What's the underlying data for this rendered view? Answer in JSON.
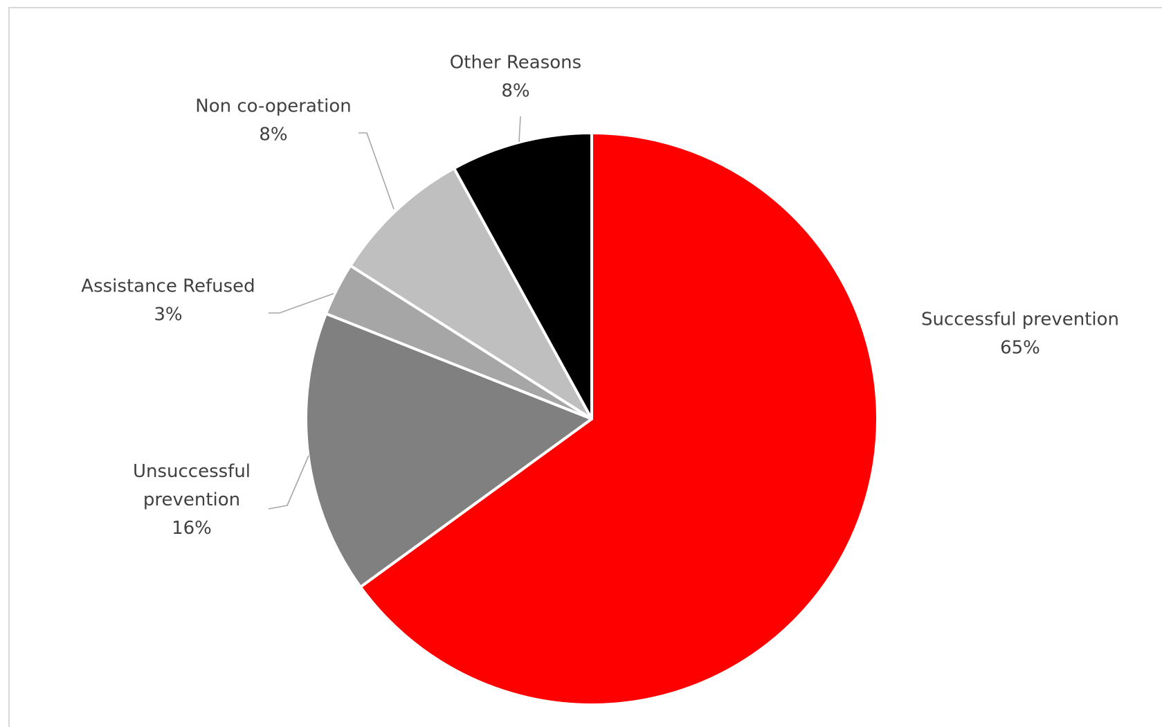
{
  "chart_data": {
    "type": "pie",
    "title": "",
    "slices": [
      {
        "name": "Successful prevention",
        "value": 65,
        "label": "65%",
        "color": "#ff0000"
      },
      {
        "name": "Unsuccessful prevention",
        "value": 16,
        "label": "16%",
        "color": "#808080"
      },
      {
        "name": "Assistance Refused",
        "value": 3,
        "label": "3%",
        "color": "#a6a6a6"
      },
      {
        "name": "Non co-operation",
        "value": 8,
        "label": "8%",
        "color": "#bfbfbf"
      },
      {
        "name": "Other Reasons",
        "value": 8,
        "label": "8%",
        "color": "#000000"
      }
    ],
    "start_angle_deg": 0,
    "direction": "clockwise",
    "legend": "none",
    "data_labels": "category name and percentage, outside with leader lines"
  }
}
